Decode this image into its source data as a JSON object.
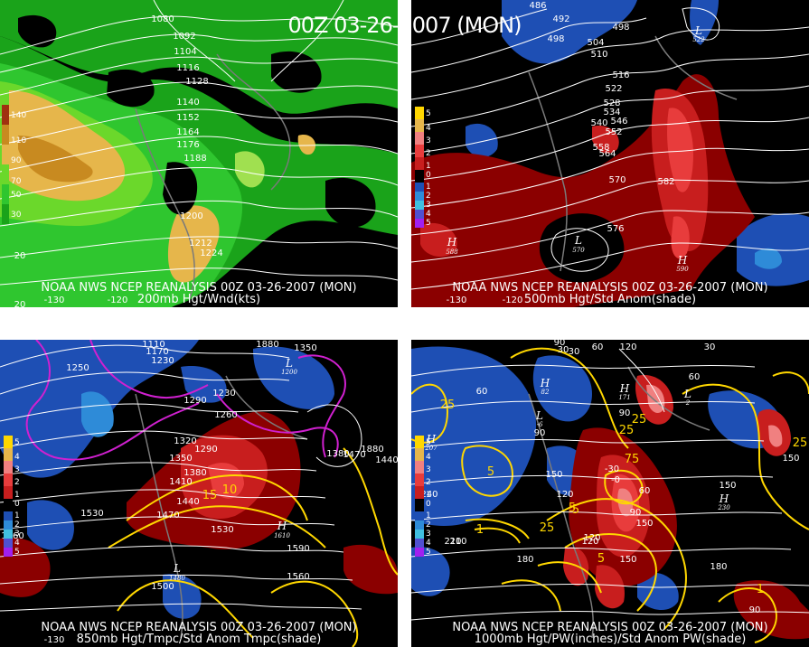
{
  "title": "00Z 03-26-2007 (MON)",
  "colors": {
    "background": "#000000",
    "contour": "#ffffff",
    "anom_pos": [
      "#8b0000",
      "#c81e1e",
      "#e83c3c",
      "#f08080",
      "#ffc0c0"
    ],
    "anom_neg": [
      "#1e4fb4",
      "#2e8bd8",
      "#40c0e0",
      "#5050d0",
      "#a020f0"
    ],
    "wind": [
      "#1aa31a",
      "#2fc62f",
      "#6bd82b",
      "#a0e050",
      "#e6b64b",
      "#c88a20",
      "#b06020",
      "#a03010"
    ],
    "temp_contour_warm": "#ffd700",
    "temp_contour_cold": "#d020d0"
  },
  "panels": [
    {
      "caption_line1": "NOAA NWS NCEP REANALYSIS 00Z 03-26-2007 (MON)",
      "caption_line2": "200mb Hgt/Wnd(kts)",
      "legend": [
        "140",
        "110",
        "90",
        "70",
        "50",
        "30"
      ],
      "height_labels": [
        "1080",
        "1092",
        "1104",
        "1116",
        "1128",
        "1140",
        "1152",
        "1164",
        "1176",
        "1188",
        "1200",
        "1212",
        "1224"
      ],
      "edge_labels": [
        "20",
        "20",
        "-130",
        "-120"
      ]
    },
    {
      "caption_line1": "NOAA NWS NCEP REANALYSIS 00Z 03-26-2007 (MON)",
      "caption_line2": "500mb Hgt/Std Anom(shade)",
      "legend": [
        "5",
        "4",
        "3",
        "2",
        "1",
        "0",
        "1",
        "2",
        "3",
        "4",
        "5"
      ],
      "height_labels": [
        "486",
        "492",
        "498",
        "504",
        "510",
        "498",
        "516",
        "522",
        "528",
        "534",
        "540",
        "546",
        "552",
        "558",
        "564",
        "570",
        "576",
        "582"
      ],
      "centers": [
        {
          "kind": "H",
          "value": "588"
        },
        {
          "kind": "L",
          "value": "570"
        },
        {
          "kind": "H",
          "value": "590"
        },
        {
          "kind": "L",
          "value": "522"
        }
      ],
      "edge_labels": [
        "-130",
        "-120"
      ]
    },
    {
      "caption_line1": "NOAA NWS NCEP REANALYSIS 00Z 03-26-2007 (MON)",
      "caption_line2": "850mb Hgt/Tmpc/Std Anom Tmpc(shade)",
      "legend": [
        "5",
        "4",
        "3",
        "2",
        "1",
        "0",
        "1",
        "2",
        "3",
        "4",
        "5"
      ],
      "height_labels": [
        "1110",
        "1170",
        "1230",
        "1250",
        "1290",
        "1230",
        "1260",
        "1320",
        "1290",
        "1350",
        "1380",
        "1410",
        "1440",
        "1470",
        "1530",
        "1530",
        "1590",
        "1560",
        "1500",
        "1380",
        "1470",
        "1560",
        "1440",
        "1880",
        "1880",
        "1350"
      ],
      "temp_labels": [
        "15",
        "10"
      ],
      "centers": [
        {
          "kind": "H",
          "value": "1610"
        },
        {
          "kind": "L",
          "value": "1480"
        },
        {
          "kind": "L",
          "value": "1200"
        }
      ],
      "edge_labels": [
        "-130"
      ]
    },
    {
      "caption_line1": "NOAA NWS NCEP REANALYSIS 00Z 03-26-2007 (MON)",
      "caption_line2": "1000mb Hgt/PW(inches)/Std Anom PW(shade)",
      "legend": [
        "5",
        "4",
        "3",
        "2",
        "1",
        "0",
        "1",
        "2",
        "3",
        "4",
        "5"
      ],
      "height_labels": [
        "90",
        "30",
        "30",
        "60",
        "120",
        "30",
        "60",
        "90",
        "90",
        "60",
        "150",
        "120",
        "150",
        "90",
        "120",
        "60",
        "120",
        "150",
        "210",
        "180",
        "210",
        "180",
        "150",
        "150",
        "240",
        "-30",
        "-0",
        "90"
      ],
      "pw_labels": [
        "25",
        "5",
        "5",
        "25",
        "25",
        "5",
        "75",
        "25",
        "1",
        "5",
        "25",
        "1"
      ],
      "centers": [
        {
          "kind": "H",
          "value": "207"
        },
        {
          "kind": "H",
          "value": "82"
        },
        {
          "kind": "H",
          "value": "171"
        },
        {
          "kind": "L",
          "value": "-6"
        },
        {
          "kind": "H",
          "value": "230"
        },
        {
          "kind": "L",
          "value": "2"
        }
      ],
      "edge_labels": []
    }
  ]
}
